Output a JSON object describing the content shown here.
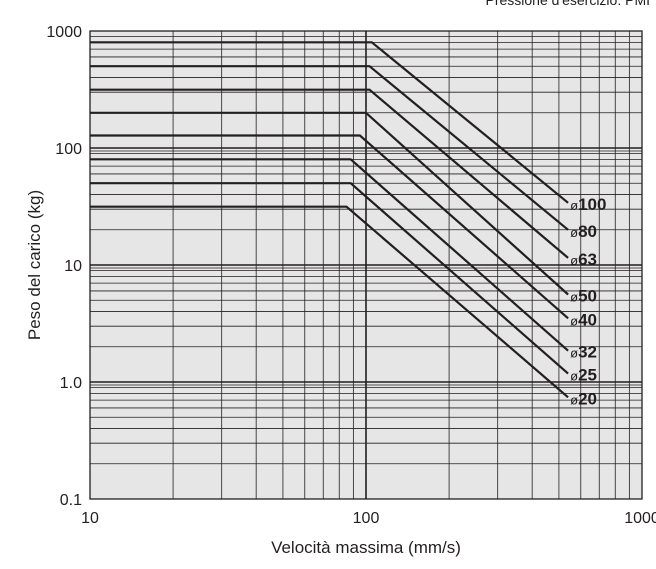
{
  "header_note": "Pressione d'esercizio: PMI",
  "chart_data": {
    "type": "line",
    "title": "",
    "xlabel": "Velocità massima (mm/s)",
    "ylabel": "Peso del carico (kg)",
    "xscale": "log",
    "yscale": "log",
    "xlim": [
      10,
      1000
    ],
    "ylim": [
      0.1,
      1000
    ],
    "grid": true,
    "x_ticks": [
      "10",
      "100",
      "1000"
    ],
    "y_ticks": [
      "0.1",
      "1.0",
      "10",
      "100",
      "1000"
    ],
    "series": [
      {
        "name": "ø100",
        "label_prefix": "ø",
        "label_value": "100",
        "points": [
          [
            10,
            800
          ],
          [
            105,
            800
          ],
          [
            540,
            34
          ]
        ]
      },
      {
        "name": "ø80",
        "label_prefix": "ø",
        "label_value": "80",
        "points": [
          [
            10,
            500
          ],
          [
            103,
            500
          ],
          [
            540,
            20
          ]
        ]
      },
      {
        "name": "ø63",
        "label_prefix": "ø",
        "label_value": "63",
        "points": [
          [
            10,
            315
          ],
          [
            103,
            315
          ],
          [
            540,
            11.5
          ]
        ]
      },
      {
        "name": "ø50",
        "label_prefix": "ø",
        "label_value": "50",
        "points": [
          [
            10,
            200
          ],
          [
            100,
            200
          ],
          [
            540,
            5.6
          ]
        ]
      },
      {
        "name": "ø40",
        "label_prefix": "ø",
        "label_value": "40",
        "points": [
          [
            10,
            128
          ],
          [
            95,
            128
          ],
          [
            540,
            3.5
          ]
        ]
      },
      {
        "name": "ø32",
        "label_prefix": "ø",
        "label_value": "32",
        "points": [
          [
            10,
            80
          ],
          [
            88,
            80
          ],
          [
            540,
            1.85
          ]
        ]
      },
      {
        "name": "ø25",
        "label_prefix": "ø",
        "label_value": "25",
        "points": [
          [
            10,
            50
          ],
          [
            88,
            50
          ],
          [
            540,
            1.18
          ]
        ]
      },
      {
        "name": "ø20",
        "label_prefix": "ø",
        "label_value": "20",
        "points": [
          [
            10,
            31.5
          ],
          [
            85,
            31.5
          ],
          [
            540,
            0.74
          ]
        ]
      }
    ],
    "colors": {
      "background": "#e6e6e6",
      "grid": "#231f20",
      "lines": "#231f20"
    }
  }
}
